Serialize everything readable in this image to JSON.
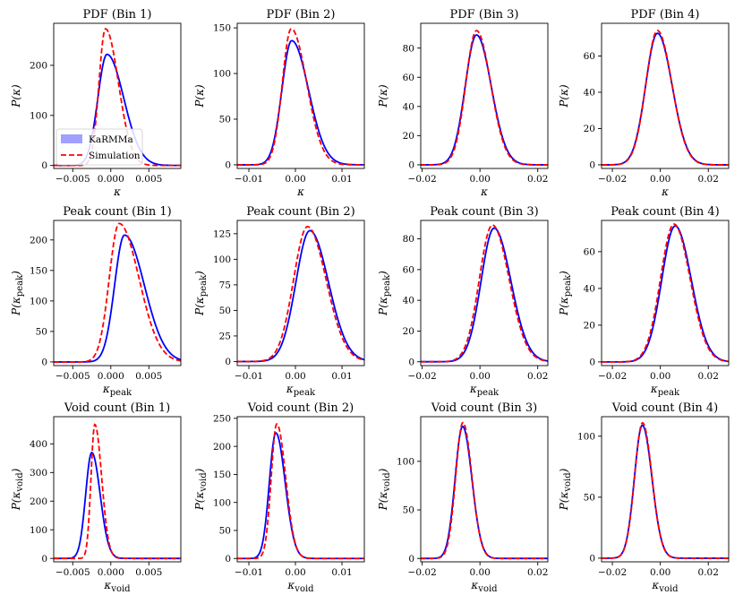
{
  "legend": {
    "position": "lower-left of top-left panel",
    "karmma": "KaRMMa",
    "simulation": "Simulation"
  },
  "colors": {
    "karmma": "#0000ff",
    "simulation": "#ff0000",
    "legend_patch": "#a0a0ff"
  },
  "chart_data": [
    {
      "type": "line",
      "title": "PDF (Bin 1)",
      "xlabel": "κ",
      "ylabel": "P(κ)",
      "xlim": [
        -0.0075,
        0.0092
      ],
      "ylim": [
        -6,
        284
      ],
      "xticks": [
        -0.005,
        0.0,
        0.005
      ],
      "xtick_labels": [
        "−0.005",
        "0.000",
        "0.005"
      ],
      "yticks": [
        0,
        100,
        200
      ],
      "ytick_labels": [
        "0",
        "100",
        "200"
      ],
      "series": [
        {
          "name": "KaRMMa",
          "mu": -0.0005,
          "sigL": 0.0012,
          "sigR": 0.0022,
          "amp": 222
        },
        {
          "name": "Simulation",
          "mu": -0.0007,
          "sigL": 0.00085,
          "sigR": 0.0017,
          "amp": 273
        }
      ]
    },
    {
      "type": "line",
      "title": "PDF (Bin 2)",
      "xlabel": "κ",
      "ylabel": "P(κ)",
      "xlim": [
        -0.0125,
        0.0148
      ],
      "ylim": [
        -4,
        155
      ],
      "xticks": [
        -0.01,
        0.0,
        0.01
      ],
      "xtick_labels": [
        "−0.01",
        "0.00",
        "0.01"
      ],
      "yticks": [
        0,
        50,
        100,
        150
      ],
      "ytick_labels": [
        "0",
        "50",
        "100",
        "150"
      ],
      "series": [
        {
          "name": "KaRMMa",
          "mu": -0.0008,
          "sigL": 0.0021,
          "sigR": 0.0036,
          "amp": 136
        },
        {
          "name": "Simulation",
          "mu": -0.0009,
          "sigL": 0.0019,
          "sigR": 0.0033,
          "amp": 149
        }
      ]
    },
    {
      "type": "line",
      "title": "PDF (Bin 3)",
      "xlabel": "κ",
      "ylabel": "P(κ)",
      "xlim": [
        -0.0205,
        0.0235
      ],
      "ylim": [
        -2.5,
        97
      ],
      "xticks": [
        -0.02,
        0.0,
        0.02
      ],
      "xtick_labels": [
        "−0.02",
        "0.00",
        "0.02"
      ],
      "yticks": [
        0,
        20,
        40,
        60,
        80
      ],
      "ytick_labels": [
        "0",
        "20",
        "40",
        "60",
        "80"
      ],
      "series": [
        {
          "name": "KaRMMa",
          "mu": -0.0012,
          "sigL": 0.0039,
          "sigR": 0.0051,
          "amp": 89
        },
        {
          "name": "Simulation",
          "mu": -0.0012,
          "sigL": 0.0037,
          "sigR": 0.0049,
          "amp": 92
        }
      ]
    },
    {
      "type": "line",
      "title": "PDF (Bin 4)",
      "xlabel": "κ",
      "ylabel": "P(κ)",
      "xlim": [
        -0.0245,
        0.0285
      ],
      "ylim": [
        -2,
        78
      ],
      "xticks": [
        -0.02,
        0.0,
        0.02
      ],
      "xtick_labels": [
        "−0.02",
        "0.00",
        "0.02"
      ],
      "yticks": [
        0,
        20,
        40,
        60
      ],
      "ytick_labels": [
        "0",
        "20",
        "40",
        "60"
      ],
      "series": [
        {
          "name": "KaRMMa",
          "mu": -0.0012,
          "sigL": 0.0049,
          "sigR": 0.0061,
          "amp": 72.5
        },
        {
          "name": "Simulation",
          "mu": -0.0012,
          "sigL": 0.0048,
          "sigR": 0.006,
          "amp": 74
        }
      ]
    },
    {
      "type": "line",
      "title": "Peak count (Bin 1)",
      "xlabel": "κpeak",
      "ylabel": "P(κpeak)",
      "xlim": [
        -0.0075,
        0.0092
      ],
      "ylim": [
        -6,
        232
      ],
      "xticks": [
        -0.005,
        0.0,
        0.005
      ],
      "xtick_labels": [
        "−0.005",
        "0.000",
        "0.005"
      ],
      "yticks": [
        0,
        50,
        100,
        150,
        200
      ],
      "ytick_labels": [
        "0",
        "50",
        "100",
        "150",
        "200"
      ],
      "series": [
        {
          "name": "KaRMMa",
          "mu": 0.0018,
          "sigL": 0.0013,
          "sigR": 0.0026,
          "amp": 208
        },
        {
          "name": "Simulation",
          "mu": 0.0011,
          "sigL": 0.0013,
          "sigR": 0.0026,
          "amp": 227
        }
      ]
    },
    {
      "type": "line",
      "title": "Peak count (Bin 2)",
      "xlabel": "κpeak",
      "ylabel": "P(κpeak)",
      "xlim": [
        -0.0125,
        0.0148
      ],
      "ylim": [
        -4,
        138
      ],
      "xticks": [
        -0.01,
        0.0,
        0.01
      ],
      "xtick_labels": [
        "−0.01",
        "0.00",
        "0.01"
      ],
      "yticks": [
        0,
        25,
        50,
        75,
        100,
        125
      ],
      "ytick_labels": [
        "0",
        "25",
        "50",
        "75",
        "100",
        "125"
      ],
      "series": [
        {
          "name": "KaRMMa",
          "mu": 0.0031,
          "sigL": 0.003,
          "sigR": 0.004,
          "amp": 128
        },
        {
          "name": "Simulation",
          "mu": 0.0026,
          "sigL": 0.003,
          "sigR": 0.004,
          "amp": 132
        }
      ]
    },
    {
      "type": "line",
      "title": "Peak count (Bin 3)",
      "xlabel": "κpeak",
      "ylabel": "P(κpeak)",
      "xlim": [
        -0.0205,
        0.0235
      ],
      "ylim": [
        -2.5,
        92
      ],
      "xticks": [
        -0.02,
        0.0,
        0.02
      ],
      "xtick_labels": [
        "−0.02",
        "0.00",
        "0.02"
      ],
      "yticks": [
        0,
        20,
        40,
        60,
        80
      ],
      "ytick_labels": [
        "0",
        "20",
        "40",
        "60",
        "80"
      ],
      "series": [
        {
          "name": "KaRMMa",
          "mu": 0.0049,
          "sigL": 0.0045,
          "sigR": 0.0058,
          "amp": 87
        },
        {
          "name": "Simulation",
          "mu": 0.0043,
          "sigL": 0.0045,
          "sigR": 0.0058,
          "amp": 89
        }
      ]
    },
    {
      "type": "line",
      "title": "Peak count (Bin 4)",
      "xlabel": "κpeak",
      "ylabel": "P(κpeak)",
      "xlim": [
        -0.0245,
        0.0285
      ],
      "ylim": [
        -2,
        77
      ],
      "xticks": [
        -0.02,
        0.0,
        0.02
      ],
      "xtick_labels": [
        "−0.02",
        "0.00",
        "0.02"
      ],
      "yticks": [
        0,
        20,
        40,
        60
      ],
      "ytick_labels": [
        "0",
        "20",
        "40",
        "60"
      ],
      "series": [
        {
          "name": "KaRMMa",
          "mu": 0.0062,
          "sigL": 0.0056,
          "sigR": 0.0067,
          "amp": 74
        },
        {
          "name": "Simulation",
          "mu": 0.0057,
          "sigL": 0.0056,
          "sigR": 0.0067,
          "amp": 75
        }
      ]
    },
    {
      "type": "line",
      "title": "Void count (Bin 1)",
      "xlabel": "κvoid",
      "ylabel": "P(κvoid)",
      "xlim": [
        -0.0075,
        0.0092
      ],
      "ylim": [
        -12,
        495
      ],
      "xticks": [
        -0.005,
        0.0,
        0.005
      ],
      "xtick_labels": [
        "−0.005",
        "0.000",
        "0.005"
      ],
      "yticks": [
        0,
        100,
        200,
        300,
        400
      ],
      "ytick_labels": [
        "0",
        "100",
        "200",
        "300",
        "400"
      ],
      "series": [
        {
          "name": "KaRMMa",
          "mu": -0.0025,
          "sigL": 0.0008,
          "sigR": 0.0011,
          "amp": 370
        },
        {
          "name": "Simulation",
          "mu": -0.0021,
          "sigL": 0.0005,
          "sigR": 0.0009,
          "amp": 468
        }
      ]
    },
    {
      "type": "line",
      "title": "Void count (Bin 2)",
      "xlabel": "κvoid",
      "ylabel": "P(κvoid)",
      "xlim": [
        -0.0125,
        0.0148
      ],
      "ylim": [
        -6,
        253
      ],
      "xticks": [
        -0.01,
        0.0,
        0.01
      ],
      "xtick_labels": [
        "−0.01",
        "0.00",
        "0.01"
      ],
      "yticks": [
        0,
        50,
        100,
        150,
        200,
        250
      ],
      "ytick_labels": [
        "0",
        "50",
        "100",
        "150",
        "200",
        "250"
      ],
      "series": [
        {
          "name": "KaRMMa",
          "mu": -0.0042,
          "sigL": 0.0014,
          "sigR": 0.002,
          "amp": 224
        },
        {
          "name": "Simulation",
          "mu": -0.004,
          "sigL": 0.0012,
          "sigR": 0.0019,
          "amp": 240
        }
      ]
    },
    {
      "type": "line",
      "title": "Void count (Bin 3)",
      "xlabel": "κvoid",
      "ylabel": "P(κvoid)",
      "xlim": [
        -0.0205,
        0.0235
      ],
      "ylim": [
        -3.5,
        146
      ],
      "xticks": [
        -0.02,
        0.0,
        0.02
      ],
      "xtick_labels": [
        "−0.02",
        "0.00",
        "0.02"
      ],
      "yticks": [
        0,
        50,
        100
      ],
      "ytick_labels": [
        "0",
        "50",
        "100"
      ],
      "series": [
        {
          "name": "KaRMMa",
          "mu": -0.006,
          "sigL": 0.0026,
          "sigR": 0.0032,
          "amp": 136
        },
        {
          "name": "Simulation",
          "mu": -0.0059,
          "sigL": 0.0025,
          "sigR": 0.0031,
          "amp": 140
        }
      ]
    },
    {
      "type": "line",
      "title": "Void count (Bin 4)",
      "xlabel": "κvoid",
      "ylabel": "P(κvoid)",
      "xlim": [
        -0.0245,
        0.0285
      ],
      "ylim": [
        -3,
        116
      ],
      "xticks": [
        -0.02,
        0.0,
        0.02
      ],
      "xtick_labels": [
        "−0.02",
        "0.00",
        "0.02"
      ],
      "yticks": [
        0,
        50,
        100
      ],
      "ytick_labels": [
        "0",
        "50",
        "100"
      ],
      "series": [
        {
          "name": "KaRMMa",
          "mu": -0.0075,
          "sigL": 0.0033,
          "sigR": 0.004,
          "amp": 109
        },
        {
          "name": "Simulation",
          "mu": -0.0074,
          "sigL": 0.0033,
          "sigR": 0.0039,
          "amp": 111
        }
      ]
    }
  ]
}
